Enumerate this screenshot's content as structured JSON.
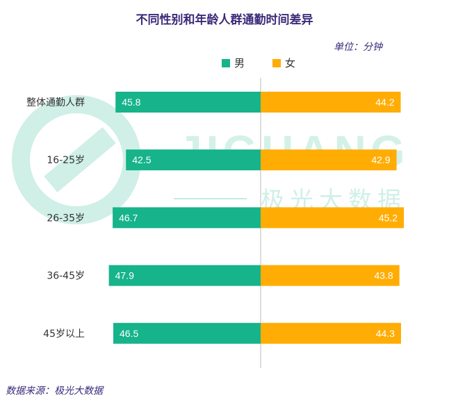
{
  "title": "不同性别和年龄人群通勤时间差异",
  "unit_label": "单位：分钟",
  "source_label": "数据来源：极光大数据",
  "watermark": {
    "brand": "JIGUANG",
    "sub": "极光大数据"
  },
  "colors": {
    "male": "#17b38b",
    "female": "#ffad05",
    "title": "#3b2a7a",
    "axis": "#bbbbbb"
  },
  "chart_data": {
    "type": "bar",
    "orientation": "horizontal-diverging",
    "categories": [
      "整体通勤人群",
      "16-25岁",
      "26-35岁",
      "36-45岁",
      "45岁以上"
    ],
    "series": [
      {
        "name": "男",
        "values": [
          45.8,
          42.5,
          46.7,
          47.9,
          46.5
        ]
      },
      {
        "name": "女",
        "values": [
          44.2,
          42.9,
          45.2,
          43.8,
          44.3
        ]
      }
    ],
    "title": "不同性别和年龄人群通勤时间差异",
    "legend_position": "top-center",
    "grid": false
  }
}
